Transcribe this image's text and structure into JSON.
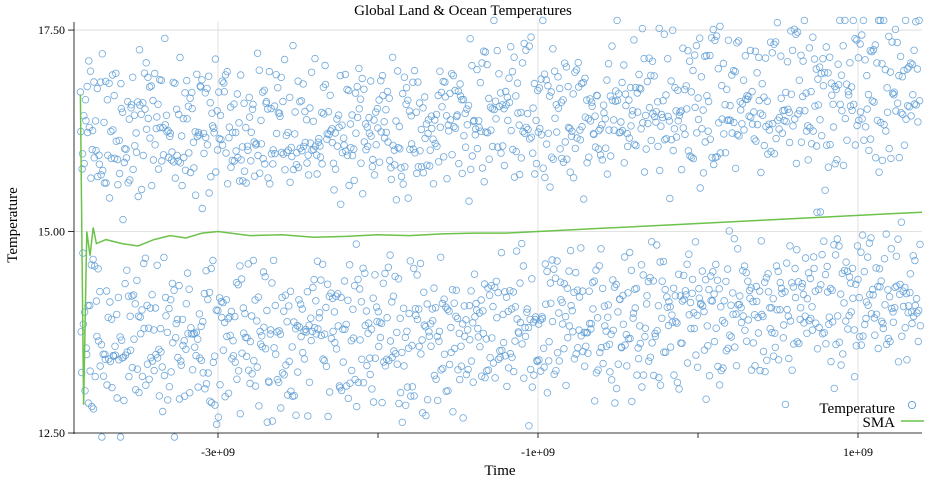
{
  "chart_data": {
    "type": "scatter",
    "title": "Global Land & Ocean Temperatures",
    "xlabel": "Time",
    "ylabel": "Temperature",
    "x_range": [
      -3900000000,
      1400000000
    ],
    "ylim": [
      12.5,
      17.6
    ],
    "x_ticks": [
      {
        "value": -3000000000,
        "label": "-3e+09"
      },
      {
        "value": -1000000000,
        "label": "-1e+09"
      },
      {
        "value": 1000000000,
        "label": "1e+09"
      }
    ],
    "x_minor_ticks": [
      -2000000000,
      0
    ],
    "y_ticks": [
      {
        "value": 12.5,
        "label": "12.50"
      },
      {
        "value": 15.0,
        "label": "15.00"
      },
      {
        "value": 17.5,
        "label": "17.50"
      }
    ],
    "grid": true,
    "legend_position": "bottom-right",
    "colors": {
      "temperature": "#5b9bd5",
      "sma": "#6cc24a",
      "grid": "#d9d9d9"
    },
    "series": [
      {
        "name": "Temperature",
        "type": "scatter",
        "note_count": 1992,
        "seasonal_bands": [
          {
            "band": "high",
            "start_mean": 16.5,
            "end_mean": 17.3,
            "spread": 0.35
          },
          {
            "band": "upper-mid",
            "start_mean": 16.0,
            "end_mean": 16.4,
            "spread": 0.3
          },
          {
            "band": "lower-mid",
            "start_mean": 14.0,
            "end_mean": 14.5,
            "spread": 0.35
          },
          {
            "band": "low",
            "start_mean": 13.3,
            "end_mean": 14.0,
            "spread": 0.35
          }
        ]
      },
      {
        "name": "SMA",
        "type": "line",
        "x": [
          -3860000000,
          -3840000000,
          -3820000000,
          -3800000000,
          -3780000000,
          -3760000000,
          -3700000000,
          -3600000000,
          -3500000000,
          -3400000000,
          -3300000000,
          -3200000000,
          -3100000000,
          -3000000000,
          -2800000000,
          -2600000000,
          -2400000000,
          -2200000000,
          -2000000000,
          -1800000000,
          -1600000000,
          -1400000000,
          -1200000000,
          -1000000000,
          -800000000,
          -600000000,
          -400000000,
          -200000000,
          0,
          200000000,
          400000000,
          600000000,
          800000000,
          1000000000,
          1200000000,
          1400000000
        ],
        "values": [
          16.7,
          12.85,
          15.0,
          14.7,
          15.05,
          14.85,
          14.9,
          14.85,
          14.82,
          14.9,
          14.95,
          14.92,
          14.98,
          15.0,
          14.95,
          14.96,
          14.93,
          14.94,
          14.96,
          14.95,
          14.97,
          14.98,
          14.98,
          15.0,
          15.02,
          15.04,
          15.06,
          15.08,
          15.1,
          15.12,
          15.14,
          15.16,
          15.18,
          15.2,
          15.22,
          15.24
        ]
      }
    ]
  }
}
